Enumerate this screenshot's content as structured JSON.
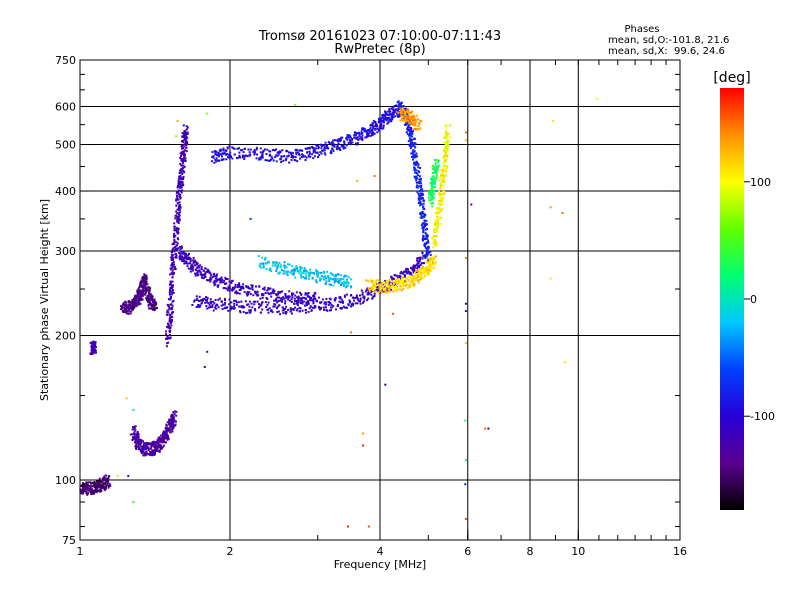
{
  "chart_data": {
    "type": "scatter",
    "title": "Tromsø 20161023 07:10:00-07:11:43",
    "subtitle": "RwPretec (8p)",
    "xlabel": "Frequency [MHz]",
    "ylabel": "Stationary phase Virtual Height [km]",
    "x_scale": "log",
    "y_scale": "log",
    "xlim": [
      1,
      16
    ],
    "ylim": [
      75,
      750
    ],
    "x_ticks": [
      1,
      2,
      4,
      6,
      8,
      10,
      16
    ],
    "x_gridlines": [
      2,
      4,
      6,
      8,
      10
    ],
    "y_ticks": [
      75,
      100,
      200,
      300,
      400,
      500,
      600,
      750
    ],
    "y_gridlines": [
      100,
      200,
      300,
      400,
      500,
      600
    ],
    "grid": true,
    "info": {
      "heading": "Phases",
      "line1": "mean, sd,O:-101.8, 21.6",
      "line2": "mean, sd,X:  99.6, 24.6"
    },
    "colorbar": {
      "label": "[deg]",
      "ticks": [
        -100,
        0,
        100
      ],
      "range": [
        -180,
        180
      ],
      "colors": [
        "#000000",
        "#5a0090",
        "#2800d8",
        "#0040ff",
        "#00c8ff",
        "#00ff70",
        "#60ff00",
        "#ffff00",
        "#ff9000",
        "#ff0000"
      ]
    },
    "traces": [
      {
        "points": [
          [
            1.0,
            96
          ],
          [
            1.04,
            96
          ],
          [
            1.08,
            97
          ],
          [
            1.11,
            98
          ],
          [
            1.14,
            100
          ]
        ],
        "phase": -150
      },
      {
        "points": [
          [
            1.06,
            188
          ],
          [
            1.07,
            190
          ]
        ],
        "phase": -120
      },
      {
        "points": [
          [
            1.22,
            228
          ],
          [
            1.26,
            229
          ],
          [
            1.3,
            236
          ],
          [
            1.33,
            248
          ],
          [
            1.35,
            262
          ],
          [
            1.38,
            236
          ],
          [
            1.42,
            231
          ]
        ],
        "phase": -140
      },
      {
        "points": [
          [
            1.28,
            126
          ],
          [
            1.31,
            119
          ],
          [
            1.35,
            116
          ],
          [
            1.4,
            116
          ],
          [
            1.44,
            118
          ],
          [
            1.48,
            123
          ],
          [
            1.52,
            130
          ],
          [
            1.55,
            136
          ]
        ],
        "phase": -130
      },
      {
        "points": [
          [
            1.5,
            195
          ],
          [
            1.52,
            230
          ],
          [
            1.54,
            280
          ],
          [
            1.56,
            330
          ],
          [
            1.58,
            390
          ],
          [
            1.6,
            440
          ],
          [
            1.62,
            500
          ],
          [
            1.63,
            540
          ]
        ],
        "phase": -120
      },
      {
        "points": [
          [
            1.58,
            300
          ],
          [
            1.65,
            285
          ],
          [
            1.75,
            272
          ],
          [
            1.9,
            260
          ],
          [
            2.1,
            250
          ],
          [
            2.4,
            244
          ],
          [
            2.7,
            240
          ],
          [
            3.0,
            239
          ]
        ],
        "phase": -115
      },
      {
        "points": [
          [
            1.7,
            236
          ],
          [
            1.9,
            232
          ],
          [
            2.2,
            229
          ],
          [
            2.6,
            228
          ],
          [
            3.0,
            230
          ],
          [
            3.4,
            235
          ],
          [
            3.8,
            244
          ],
          [
            4.2,
            256
          ],
          [
            4.6,
            272
          ],
          [
            4.9,
            292
          ]
        ],
        "phase": -110
      },
      {
        "points": [
          [
            1.85,
            470
          ],
          [
            2.0,
            482
          ],
          [
            2.3,
            478
          ],
          [
            2.6,
            472
          ],
          [
            2.9,
            480
          ],
          [
            3.2,
            494
          ],
          [
            3.5,
            512
          ],
          [
            3.8,
            532
          ],
          [
            4.0,
            555
          ],
          [
            4.2,
            575
          ],
          [
            4.4,
            596
          ]
        ],
        "phase": -95
      },
      {
        "points": [
          [
            4.4,
            600
          ],
          [
            4.55,
            560
          ],
          [
            4.65,
            500
          ],
          [
            4.75,
            440
          ],
          [
            4.85,
            380
          ],
          [
            4.92,
            330
          ],
          [
            5.0,
            290
          ]
        ],
        "phase": -80
      },
      {
        "points": [
          [
            3.8,
            255
          ],
          [
            4.1,
            252
          ],
          [
            4.4,
            256
          ],
          [
            4.7,
            262
          ],
          [
            4.95,
            272
          ],
          [
            5.15,
            292
          ]
        ],
        "phase": 115
      },
      {
        "points": [
          [
            5.15,
            310
          ],
          [
            5.25,
            360
          ],
          [
            5.35,
            420
          ],
          [
            5.42,
            480
          ],
          [
            5.48,
            540
          ]
        ],
        "phase": 100
      },
      {
        "points": [
          [
            4.4,
            580
          ],
          [
            4.6,
            570
          ],
          [
            4.8,
            548
          ]
        ],
        "phase": 135
      },
      {
        "points": [
          [
            5.05,
            380
          ],
          [
            5.12,
            420
          ],
          [
            5.2,
            460
          ]
        ],
        "phase": 30
      },
      {
        "points": [
          [
            2.3,
            285
          ],
          [
            2.6,
            275
          ],
          [
            2.9,
            268
          ],
          [
            3.2,
            262
          ],
          [
            3.5,
            258
          ]
        ],
        "phase": -20
      }
    ],
    "scatter": [
      [
        1.24,
        148,
        120
      ],
      [
        1.28,
        140,
        20
      ],
      [
        1.28,
        90,
        40
      ],
      [
        1.19,
        102,
        110
      ],
      [
        1.25,
        102,
        -110
      ],
      [
        1.57,
        560,
        130
      ],
      [
        1.56,
        520,
        60
      ],
      [
        1.8,
        580,
        70
      ],
      [
        1.8,
        185,
        -140
      ],
      [
        1.78,
        172,
        -120
      ],
      [
        2.7,
        605,
        70
      ],
      [
        3.8,
        80,
        160
      ],
      [
        3.45,
        80,
        170
      ],
      [
        3.5,
        203,
        150
      ],
      [
        3.7,
        118,
        170
      ],
      [
        3.7,
        125,
        140
      ],
      [
        3.9,
        430,
        150
      ],
      [
        3.6,
        420,
        130
      ],
      [
        4.1,
        158,
        -150
      ],
      [
        4.25,
        222,
        160
      ],
      [
        5.95,
        530,
        150
      ],
      [
        5.95,
        510,
        130
      ],
      [
        5.95,
        290,
        150
      ],
      [
        5.95,
        233,
        -110
      ],
      [
        5.95,
        225,
        -90
      ],
      [
        5.93,
        133,
        30
      ],
      [
        5.95,
        110,
        20
      ],
      [
        5.93,
        98,
        -70
      ],
      [
        5.95,
        83,
        160
      ],
      [
        5.95,
        193,
        120
      ],
      [
        6.5,
        128,
        150
      ],
      [
        6.6,
        128,
        -150
      ],
      [
        8.9,
        560,
        110
      ],
      [
        8.8,
        370,
        140
      ],
      [
        9.3,
        360,
        150
      ],
      [
        8.8,
        263,
        110
      ],
      [
        9.4,
        176,
        110
      ],
      [
        10.9,
        622,
        100
      ],
      [
        6.1,
        375,
        -140
      ],
      [
        2.2,
        350,
        -60
      ]
    ]
  }
}
